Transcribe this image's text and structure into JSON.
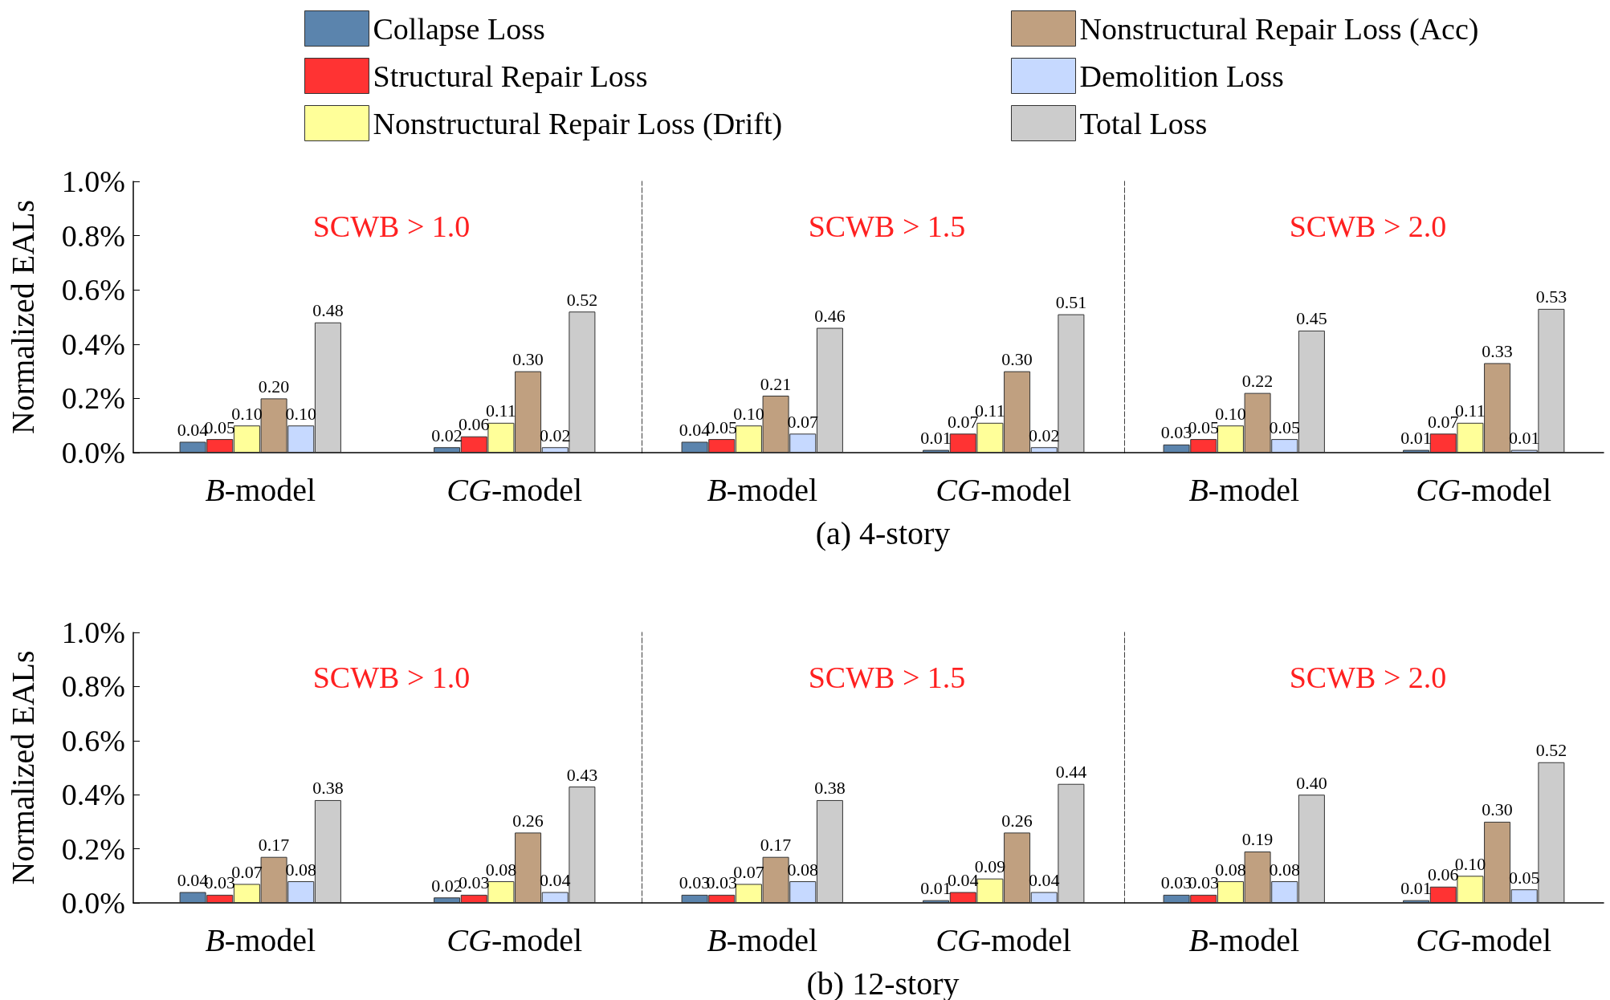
{
  "chart_data": [
    {
      "type": "bar",
      "title": "SCWB > 1.0",
      "ylabel": "Normalized EALs",
      "categories": [
        "B-model",
        "CG-model"
      ],
      "ylim": [
        0,
        1
      ],
      "yticks": [
        {
          "value": 0,
          "label": "0.0%"
        },
        {
          "value": 0.2,
          "label": "0.2%"
        },
        {
          "value": 0.4,
          "label": "0.4%"
        },
        {
          "value": 0.6,
          "label": "0.6%"
        },
        {
          "value": 0.8,
          "label": "0.8%"
        },
        {
          "value": 1,
          "label": "1.0%"
        }
      ],
      "legend": "top",
      "series": [
        {
          "name": "Collapse Loss",
          "color": "#5b84ad",
          "values": [
            0.04,
            0.02
          ],
          "value_labels": [
            "0.04",
            "0.02"
          ]
        },
        {
          "name": "Structural Repair Loss",
          "color": "#ff3333",
          "values": [
            0.05,
            0.06
          ],
          "value_labels": [
            "0.05",
            "0.06"
          ]
        },
        {
          "name": "Nonstructural Repair Loss (Drift)",
          "color": "#ffff99",
          "values": [
            0.1,
            0.11
          ],
          "value_labels": [
            "0.10",
            "0.11"
          ]
        },
        {
          "name": "Nonstructural Repair Loss (Acc)",
          "color": "#c0a080",
          "values": [
            0.2,
            0.3
          ],
          "value_labels": [
            "0.20",
            "0.30"
          ]
        },
        {
          "name": "Demolition Loss",
          "color": "#c6d9ff",
          "values": [
            0.1,
            0.02
          ],
          "value_labels": [
            "0.10",
            "0.02"
          ]
        },
        {
          "name": "Total Loss",
          "color": "#cccccc",
          "values": [
            0.48,
            0.52
          ],
          "value_labels": [
            "0.48",
            "0.52"
          ]
        }
      ]
    },
    {
      "type": "bar",
      "title": "SCWB > 1.5",
      "categories": [
        "B-model",
        "CG-model"
      ],
      "ylim": [
        0,
        1
      ],
      "tick_labels": "x",
      "annotations": [
        "(a) 4-story"
      ],
      "series": [
        {
          "color": "#5b84ad",
          "values": [
            0.04,
            0.01
          ],
          "value_labels": [
            "0.04",
            "0.01"
          ]
        },
        {
          "color": "#ff3333",
          "values": [
            0.05,
            0.07
          ],
          "value_labels": [
            "0.05",
            "0.07"
          ]
        },
        {
          "color": "#ffff99",
          "values": [
            0.1,
            0.11
          ],
          "value_labels": [
            "0.10",
            "0.11"
          ]
        },
        {
          "color": "#c0a080",
          "values": [
            0.21,
            0.3
          ],
          "value_labels": [
            "0.21",
            "0.30"
          ]
        },
        {
          "color": "#c6d9ff",
          "values": [
            0.07,
            0.02
          ],
          "value_labels": [
            "0.07",
            "0.02"
          ]
        },
        {
          "color": "#cccccc",
          "values": [
            0.46,
            0.51
          ],
          "value_labels": [
            "0.46",
            "0.51"
          ]
        }
      ]
    },
    {
      "type": "bar",
      "title": "SCWB > 2.0",
      "categories": [
        "B-model",
        "CG-model"
      ],
      "ylim": [
        0,
        1
      ],
      "tick_labels": "x",
      "series": [
        {
          "color": "#5b84ad",
          "values": [
            0.03,
            0.01
          ],
          "value_labels": [
            "0.03",
            "0.01"
          ]
        },
        {
          "color": "#ff3333",
          "values": [
            0.05,
            0.07
          ],
          "value_labels": [
            "0.05",
            "0.07"
          ]
        },
        {
          "color": "#ffff99",
          "values": [
            0.1,
            0.11
          ],
          "value_labels": [
            "0.10",
            "0.11"
          ]
        },
        {
          "color": "#c0a080",
          "values": [
            0.22,
            0.33
          ],
          "value_labels": [
            "0.22",
            "0.33"
          ]
        },
        {
          "color": "#c6d9ff",
          "values": [
            0.05,
            0.01
          ],
          "value_labels": [
            "0.05",
            "0.01"
          ]
        },
        {
          "color": "#cccccc",
          "values": [
            0.45,
            0.53
          ],
          "value_labels": [
            "0.45",
            "0.53"
          ]
        }
      ]
    },
    {
      "type": "bar",
      "title": "SCWB > 1.0",
      "ylabel": "Normalized EALs",
      "categories": [
        "B-model",
        "CG-model"
      ],
      "ylim": [
        0,
        1
      ],
      "yticks": [
        {
          "value": 0,
          "label": "0.0%"
        },
        {
          "value": 0.2,
          "label": "0.2%"
        },
        {
          "value": 0.4,
          "label": "0.4%"
        },
        {
          "value": 0.6,
          "label": "0.6%"
        },
        {
          "value": 0.8,
          "label": "0.8%"
        },
        {
          "value": 1,
          "label": "1.0%"
        }
      ],
      "series": [
        {
          "color": "#5b84ad",
          "values": [
            0.04,
            0.02
          ],
          "value_labels": [
            "0.04",
            "0.02"
          ]
        },
        {
          "color": "#ff3333",
          "values": [
            0.03,
            0.03
          ],
          "value_labels": [
            "0.03",
            "0.03"
          ]
        },
        {
          "color": "#ffff99",
          "values": [
            0.07,
            0.08
          ],
          "value_labels": [
            "0.07",
            "0.08"
          ]
        },
        {
          "color": "#c0a080",
          "values": [
            0.17,
            0.26
          ],
          "value_labels": [
            "0.17",
            "0.26"
          ]
        },
        {
          "color": "#c6d9ff",
          "values": [
            0.08,
            0.04
          ],
          "value_labels": [
            "0.08",
            "0.04"
          ]
        },
        {
          "color": "#cccccc",
          "values": [
            0.38,
            0.43
          ],
          "value_labels": [
            "0.38",
            "0.43"
          ]
        }
      ]
    },
    {
      "type": "bar",
      "title": "SCWB > 1.5",
      "categories": [
        "B-model",
        "CG-model"
      ],
      "ylim": [
        0,
        1
      ],
      "tick_labels": "x",
      "annotations": [
        "(b) 12-story"
      ],
      "series": [
        {
          "color": "#5b84ad",
          "values": [
            0.03,
            0.01
          ],
          "value_labels": [
            "0.03",
            "0.01"
          ]
        },
        {
          "color": "#ff3333",
          "values": [
            0.03,
            0.04
          ],
          "value_labels": [
            "0.03",
            "0.04"
          ]
        },
        {
          "color": "#ffff99",
          "values": [
            0.07,
            0.09
          ],
          "value_labels": [
            "0.07",
            "0.09"
          ]
        },
        {
          "color": "#c0a080",
          "values": [
            0.17,
            0.26
          ],
          "value_labels": [
            "0.17",
            "0.26"
          ]
        },
        {
          "color": "#c6d9ff",
          "values": [
            0.08,
            0.04
          ],
          "value_labels": [
            "0.08",
            "0.04"
          ]
        },
        {
          "color": "#cccccc",
          "values": [
            0.38,
            0.44
          ],
          "value_labels": [
            "0.38",
            "0.44"
          ]
        }
      ]
    },
    {
      "type": "bar",
      "title": "SCWB > 2.0",
      "categories": [
        "B-model",
        "CG-model"
      ],
      "ylim": [
        0,
        1
      ],
      "tick_labels": "x",
      "series": [
        {
          "color": "#5b84ad",
          "values": [
            0.03,
            0.01
          ],
          "value_labels": [
            "0.03",
            "0.01"
          ]
        },
        {
          "color": "#ff3333",
          "values": [
            0.03,
            0.06
          ],
          "value_labels": [
            "0.03",
            "0.06"
          ]
        },
        {
          "color": "#ffff99",
          "values": [
            0.08,
            0.1
          ],
          "value_labels": [
            "0.08",
            "0.10"
          ]
        },
        {
          "color": "#c0a080",
          "values": [
            0.19,
            0.3
          ],
          "value_labels": [
            "0.19",
            "0.30"
          ]
        },
        {
          "color": "#c6d9ff",
          "values": [
            0.08,
            0.05
          ],
          "value_labels": [
            "0.08",
            "0.05"
          ]
        },
        {
          "color": "#cccccc",
          "values": [
            0.4,
            0.52
          ],
          "value_labels": [
            "0.40",
            "0.52"
          ]
        }
      ]
    }
  ]
}
